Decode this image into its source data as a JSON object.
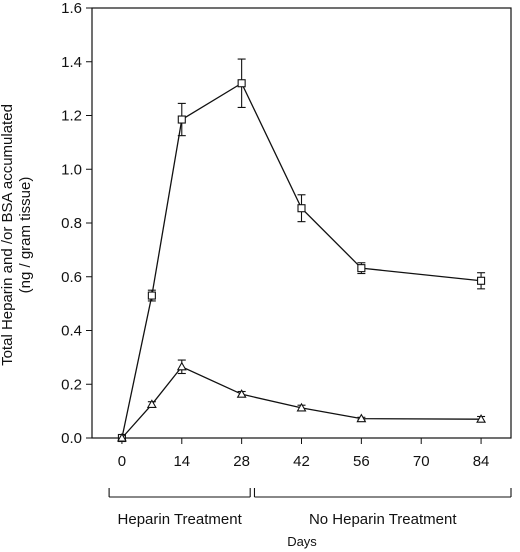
{
  "chart_data": {
    "type": "line",
    "ylabel_line1": "Total Heparin and /or BSA  accumulated",
    "ylabel_line2": "(ng / gram tissue)",
    "xlabel": "Days",
    "x_ticks": [
      0,
      14,
      28,
      42,
      56,
      70,
      84
    ],
    "y_ticks": [
      "0.0",
      "0.2",
      "0.4",
      "0.6",
      "0.8",
      "1.0",
      "1.2",
      "1.4",
      "1.6"
    ],
    "xlim": [
      -7,
      91
    ],
    "ylim": [
      0,
      1.6
    ],
    "grid": false,
    "periods": [
      {
        "label": "Heparin Treatment",
        "from_day": -3,
        "to_day": 30
      },
      {
        "label": "No Heparin Treatment",
        "from_day": 31,
        "to_day": 91
      }
    ],
    "series": [
      {
        "marker": "square",
        "x": [
          0,
          7,
          14,
          28,
          42,
          56,
          84
        ],
        "y": [
          0.0,
          0.53,
          1.185,
          1.32,
          0.855,
          0.632,
          0.585
        ],
        "err": [
          0.0,
          0.02,
          0.06,
          0.09,
          0.05,
          0.02,
          0.03
        ]
      },
      {
        "marker": "triangle",
        "x": [
          0,
          7,
          14,
          28,
          42,
          56,
          84
        ],
        "y": [
          0.0,
          0.125,
          0.265,
          0.163,
          0.112,
          0.072,
          0.07
        ],
        "err": [
          0.0,
          0.01,
          0.025,
          0.01,
          0.01,
          0.005,
          0.01
        ]
      }
    ]
  }
}
